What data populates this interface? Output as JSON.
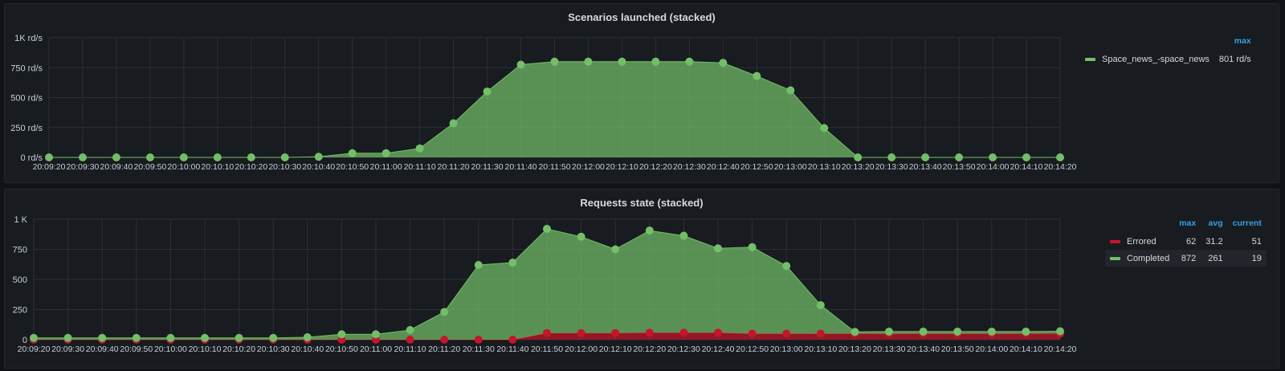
{
  "chart_data": [
    {
      "type": "area",
      "title": "Scenarios launched (stacked)",
      "y_ticks": [
        "0 rd/s",
        "250 rd/s",
        "500 rd/s",
        "750 rd/s",
        "1K rd/s"
      ],
      "ylim": [
        0,
        1000
      ],
      "grid": true,
      "x": [
        "20:09:20",
        "20:09:30",
        "20:09:40",
        "20:09:50",
        "20:10:00",
        "20:10:10",
        "20:10:20",
        "20:10:30",
        "20:10:40",
        "20:10:50",
        "20:11:00",
        "20:11:10",
        "20:11:20",
        "20:11:30",
        "20:11:40",
        "20:11:50",
        "20:12:00",
        "20:12:10",
        "20:12:20",
        "20:12:30",
        "20:12:40",
        "20:12:50",
        "20:13:00",
        "20:13:10",
        "20:13:20",
        "20:13:30",
        "20:13:40",
        "20:13:50",
        "20:14:00",
        "20:14:10",
        "20:14:20"
      ],
      "series": [
        {
          "name": "Space_news_-space_news",
          "color": "#73bf69",
          "values": [
            0,
            0,
            0,
            0,
            0,
            0,
            0,
            0,
            5,
            35,
            35,
            75,
            285,
            550,
            775,
            800,
            800,
            800,
            800,
            800,
            790,
            680,
            560,
            245,
            0,
            0,
            0,
            0,
            0,
            0,
            0
          ]
        }
      ],
      "legend": {
        "placement": "right",
        "headers": [
          "max"
        ],
        "rows": [
          {
            "name": "Space_news_-space_news",
            "color": "#73bf69",
            "stats": [
              "801 rd/s"
            ]
          }
        ]
      }
    },
    {
      "type": "area",
      "title": "Requests state (stacked)",
      "y_ticks": [
        "0",
        "250",
        "500",
        "750",
        "1 K"
      ],
      "ylim": [
        0,
        1000
      ],
      "grid": true,
      "x": [
        "20:09:20",
        "20:09:30",
        "20:09:40",
        "20:09:50",
        "20:10:00",
        "20:10:10",
        "20:10:20",
        "20:10:30",
        "20:10:40",
        "20:10:50",
        "20:11:00",
        "20:11:10",
        "20:11:20",
        "20:11:30",
        "20:11:40",
        "20:11:50",
        "20:12:00",
        "20:12:10",
        "20:12:20",
        "20:12:30",
        "20:12:40",
        "20:12:50",
        "20:13:00",
        "20:13:10",
        "20:13:20",
        "20:13:30",
        "20:13:40",
        "20:13:50",
        "20:14:00",
        "20:14:10",
        "20:14:20"
      ],
      "series": [
        {
          "name": "Errored",
          "color": "#c4162a",
          "values": [
            0,
            0,
            0,
            0,
            0,
            0,
            0,
            0,
            0,
            0,
            0,
            0,
            0,
            0,
            0,
            55,
            55,
            55,
            58,
            58,
            58,
            50,
            50,
            50,
            50,
            50,
            50,
            50,
            50,
            50,
            51
          ]
        },
        {
          "name": "Completed",
          "color": "#73bf69",
          "values": [
            15,
            15,
            15,
            15,
            15,
            15,
            15,
            15,
            20,
            45,
            45,
            80,
            230,
            620,
            640,
            865,
            800,
            695,
            848,
            805,
            700,
            718,
            562,
            237,
            15,
            17,
            17,
            17,
            17,
            17,
            19
          ]
        }
      ],
      "legend": {
        "placement": "right",
        "headers": [
          "max",
          "avg",
          "current"
        ],
        "rows": [
          {
            "name": "Errored",
            "color": "#c4162a",
            "stats": [
              "62",
              "31.2",
              "51"
            ]
          },
          {
            "name": "Completed",
            "color": "#73bf69",
            "stats": [
              "872",
              "261",
              "19"
            ]
          }
        ]
      }
    }
  ]
}
